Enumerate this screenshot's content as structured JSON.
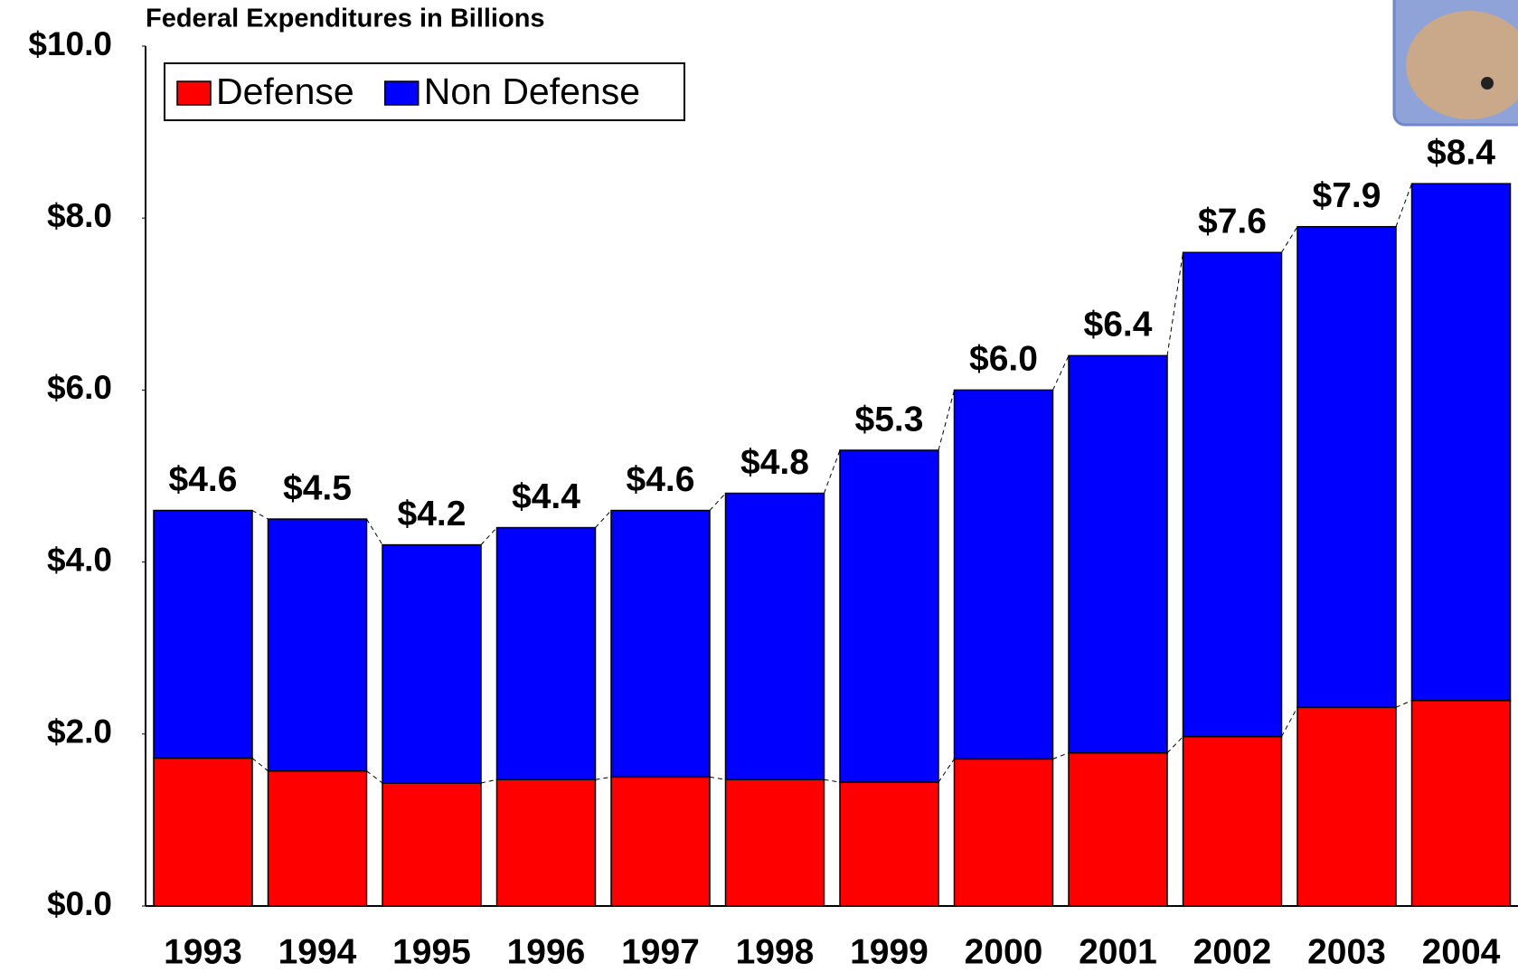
{
  "chart_data": {
    "type": "stacked_bar",
    "title": "Federal Expenditures in Billions",
    "categories": [
      "1993",
      "1994",
      "1995",
      "1996",
      "1997",
      "1998",
      "1999",
      "2000",
      "2001",
      "2002",
      "2003",
      "2004"
    ],
    "series": [
      {
        "name": "Defense",
        "color": "#ff0000",
        "values": [
          1.72,
          1.57,
          1.43,
          1.47,
          1.5,
          1.47,
          1.44,
          1.71,
          1.78,
          1.97,
          2.31,
          2.39
        ]
      },
      {
        "name": "Non Defense",
        "color": "#0000ff",
        "values": [
          2.88,
          2.93,
          2.77,
          2.93,
          3.1,
          3.33,
          3.86,
          4.29,
          4.62,
          5.63,
          5.59,
          6.01
        ]
      }
    ],
    "totals": [
      4.6,
      4.5,
      4.2,
      4.4,
      4.6,
      4.8,
      5.3,
      6.0,
      6.4,
      7.6,
      7.9,
      8.4
    ],
    "total_labels": [
      "$4.6",
      "$4.5",
      "$4.2",
      "$4.4",
      "$4.6",
      "$4.8",
      "$5.3",
      "$6.0",
      "$6.4",
      "$7.6",
      "$7.9",
      "$8.4"
    ],
    "ylim": [
      0,
      10
    ],
    "yticks": [
      {
        "value": 0,
        "label": "$0.0"
      },
      {
        "value": 2,
        "label": "$2.0"
      },
      {
        "value": 4,
        "label": "$4.0"
      },
      {
        "value": 6,
        "label": "$6.0"
      },
      {
        "value": 8,
        "label": "$8.0"
      },
      {
        "value": 10,
        "label": "$10.0"
      }
    ],
    "legend": "top-left"
  }
}
